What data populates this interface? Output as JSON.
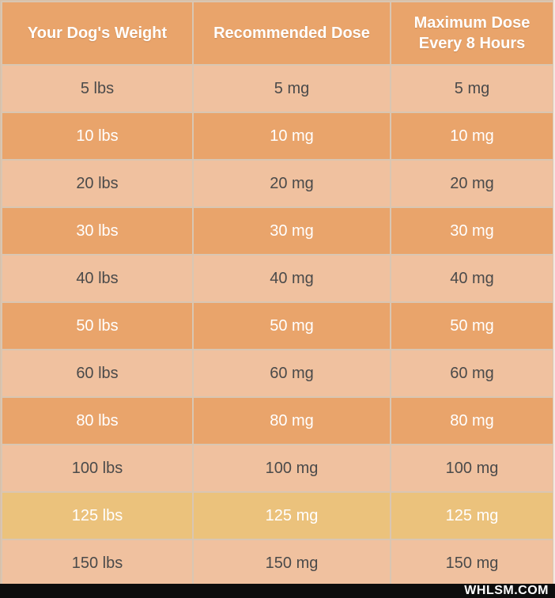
{
  "table": {
    "headers": [
      "Your Dog's Weight",
      "Recommended Dose",
      "Maximum Dose Every 8 Hours"
    ],
    "rows": [
      {
        "weight": "5 lbs",
        "recommended": "5 mg",
        "maximum": "5 mg",
        "style": "light"
      },
      {
        "weight": "10 lbs",
        "recommended": "10 mg",
        "maximum": "10 mg",
        "style": "dark"
      },
      {
        "weight": "20 lbs",
        "recommended": "20 mg",
        "maximum": "20 mg",
        "style": "light"
      },
      {
        "weight": "30 lbs",
        "recommended": "30 mg",
        "maximum": "30 mg",
        "style": "dark"
      },
      {
        "weight": "40 lbs",
        "recommended": "40 mg",
        "maximum": "40 mg",
        "style": "light"
      },
      {
        "weight": "50 lbs",
        "recommended": "50 mg",
        "maximum": "50 mg",
        "style": "dark"
      },
      {
        "weight": "60 lbs",
        "recommended": "60 mg",
        "maximum": "60 mg",
        "style": "light"
      },
      {
        "weight": "80 lbs",
        "recommended": "80 mg",
        "maximum": "80 mg",
        "style": "dark"
      },
      {
        "weight": "100 lbs",
        "recommended": "100 mg",
        "maximum": "100 mg",
        "style": "light"
      },
      {
        "weight": "125 lbs",
        "recommended": "125 mg",
        "maximum": "125 mg",
        "style": "yellow"
      },
      {
        "weight": "150 lbs",
        "recommended": "150 mg",
        "maximum": "150 mg",
        "style": "light"
      }
    ]
  },
  "colors": {
    "header_bg": "#e9a46b",
    "row_light": "#f0c19f",
    "row_dark": "#e9a46b",
    "row_highlight": "#ebc27c",
    "footer_bg": "#0d0d0d"
  },
  "footer": {
    "watermark": "WHLSM.COM"
  }
}
